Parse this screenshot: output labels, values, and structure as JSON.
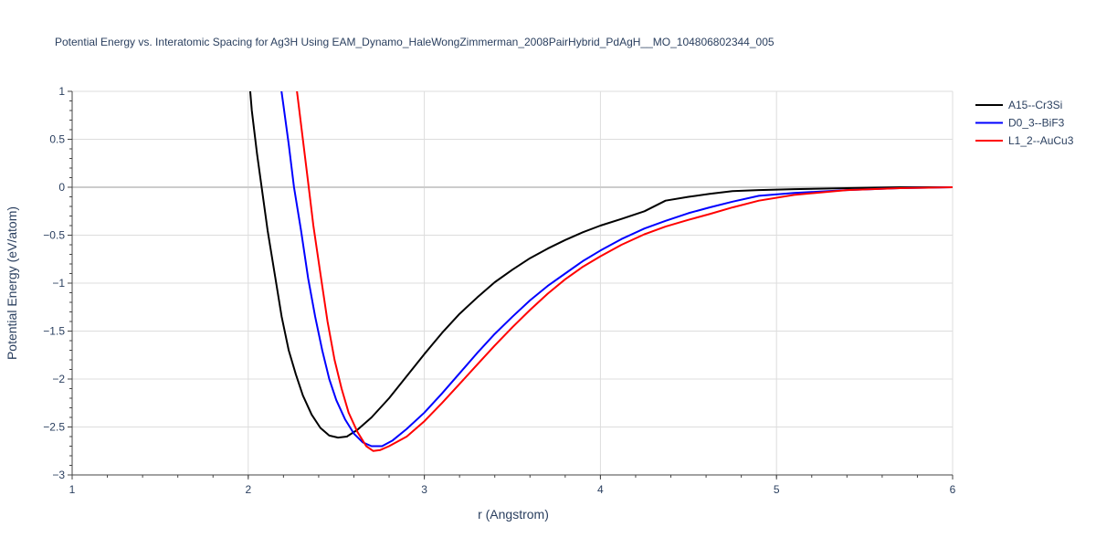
{
  "chart_data": {
    "type": "line",
    "title": "Potential Energy vs. Interatomic Spacing for Ag3H Using EAM_Dynamo_HaleWongZimmerman_2008PairHybrid_PdAgH__MO_104806802344_005",
    "xlabel": "r (Angstrom)",
    "ylabel": "Potential Energy (eV/atom)",
    "xlim": [
      1,
      6
    ],
    "ylim": [
      -3,
      1
    ],
    "x_ticks": [
      "1",
      "2",
      "3",
      "4",
      "5",
      "6"
    ],
    "y_ticks": [
      "1",
      "0.5",
      "0",
      "−0.5",
      "−1",
      "−1.5",
      "−2",
      "−2.5",
      "−3"
    ],
    "x_tick_values": [
      1,
      2,
      3,
      4,
      5,
      6
    ],
    "y_tick_values": [
      1,
      0.5,
      0,
      -0.5,
      -1,
      -1.5,
      -2,
      -2.5,
      -3
    ],
    "grid": true,
    "legend_position": "top-right",
    "series": [
      {
        "name": "A15--Cr3Si",
        "color": "#000000",
        "points": [
          [
            2.0,
            1.25
          ],
          [
            2.02,
            0.8
          ],
          [
            2.05,
            0.35
          ],
          [
            2.08,
            -0.05
          ],
          [
            2.11,
            -0.45
          ],
          [
            2.15,
            -0.9
          ],
          [
            2.19,
            -1.35
          ],
          [
            2.23,
            -1.7
          ],
          [
            2.27,
            -1.95
          ],
          [
            2.31,
            -2.17
          ],
          [
            2.36,
            -2.37
          ],
          [
            2.41,
            -2.51
          ],
          [
            2.46,
            -2.59
          ],
          [
            2.51,
            -2.61
          ],
          [
            2.56,
            -2.6
          ],
          [
            2.62,
            -2.53
          ],
          [
            2.7,
            -2.4
          ],
          [
            2.8,
            -2.2
          ],
          [
            2.9,
            -1.97
          ],
          [
            3.0,
            -1.74
          ],
          [
            3.1,
            -1.52
          ],
          [
            3.2,
            -1.32
          ],
          [
            3.3,
            -1.15
          ],
          [
            3.4,
            -0.99
          ],
          [
            3.5,
            -0.86
          ],
          [
            3.6,
            -0.74
          ],
          [
            3.7,
            -0.64
          ],
          [
            3.8,
            -0.55
          ],
          [
            3.9,
            -0.47
          ],
          [
            4.0,
            -0.4
          ],
          [
            4.12,
            -0.33
          ],
          [
            4.25,
            -0.25
          ],
          [
            4.37,
            -0.14
          ],
          [
            4.5,
            -0.1
          ],
          [
            4.62,
            -0.07
          ],
          [
            4.75,
            -0.04
          ],
          [
            4.9,
            -0.03
          ],
          [
            5.1,
            -0.02
          ],
          [
            5.4,
            -0.01
          ],
          [
            5.7,
            0.0
          ],
          [
            6.0,
            0.0
          ]
        ]
      },
      {
        "name": "D0_3--BiF3",
        "color": "#0000ff",
        "points": [
          [
            2.17,
            1.25
          ],
          [
            2.2,
            0.85
          ],
          [
            2.23,
            0.45
          ],
          [
            2.26,
            0.0
          ],
          [
            2.3,
            -0.45
          ],
          [
            2.34,
            -0.95
          ],
          [
            2.38,
            -1.35
          ],
          [
            2.42,
            -1.7
          ],
          [
            2.46,
            -2.0
          ],
          [
            2.5,
            -2.22
          ],
          [
            2.55,
            -2.42
          ],
          [
            2.6,
            -2.57
          ],
          [
            2.65,
            -2.66
          ],
          [
            2.7,
            -2.7
          ],
          [
            2.76,
            -2.7
          ],
          [
            2.82,
            -2.64
          ],
          [
            2.9,
            -2.52
          ],
          [
            3.0,
            -2.35
          ],
          [
            3.1,
            -2.15
          ],
          [
            3.2,
            -1.94
          ],
          [
            3.3,
            -1.73
          ],
          [
            3.4,
            -1.53
          ],
          [
            3.5,
            -1.35
          ],
          [
            3.6,
            -1.18
          ],
          [
            3.7,
            -1.03
          ],
          [
            3.8,
            -0.9
          ],
          [
            3.9,
            -0.77
          ],
          [
            4.0,
            -0.66
          ],
          [
            4.12,
            -0.54
          ],
          [
            4.25,
            -0.43
          ],
          [
            4.37,
            -0.35
          ],
          [
            4.5,
            -0.27
          ],
          [
            4.62,
            -0.21
          ],
          [
            4.75,
            -0.15
          ],
          [
            4.9,
            -0.09
          ],
          [
            5.1,
            -0.06
          ],
          [
            5.4,
            -0.03
          ],
          [
            5.7,
            -0.01
          ],
          [
            6.0,
            0.0
          ]
        ]
      },
      {
        "name": "L1_2--AuCu3",
        "color": "#ff0000",
        "points": [
          [
            2.26,
            1.25
          ],
          [
            2.28,
            0.95
          ],
          [
            2.31,
            0.5
          ],
          [
            2.34,
            0.05
          ],
          [
            2.37,
            -0.4
          ],
          [
            2.41,
            -0.9
          ],
          [
            2.45,
            -1.4
          ],
          [
            2.49,
            -1.8
          ],
          [
            2.53,
            -2.1
          ],
          [
            2.57,
            -2.35
          ],
          [
            2.62,
            -2.55
          ],
          [
            2.67,
            -2.7
          ],
          [
            2.71,
            -2.75
          ],
          [
            2.75,
            -2.74
          ],
          [
            2.8,
            -2.7
          ],
          [
            2.9,
            -2.6
          ],
          [
            3.0,
            -2.44
          ],
          [
            3.1,
            -2.25
          ],
          [
            3.2,
            -2.05
          ],
          [
            3.3,
            -1.85
          ],
          [
            3.4,
            -1.65
          ],
          [
            3.5,
            -1.46
          ],
          [
            3.6,
            -1.28
          ],
          [
            3.7,
            -1.11
          ],
          [
            3.8,
            -0.96
          ],
          [
            3.9,
            -0.83
          ],
          [
            4.0,
            -0.72
          ],
          [
            4.12,
            -0.6
          ],
          [
            4.25,
            -0.49
          ],
          [
            4.37,
            -0.41
          ],
          [
            4.5,
            -0.34
          ],
          [
            4.62,
            -0.28
          ],
          [
            4.75,
            -0.21
          ],
          [
            4.9,
            -0.14
          ],
          [
            5.1,
            -0.08
          ],
          [
            5.4,
            -0.03
          ],
          [
            5.7,
            -0.01
          ],
          [
            6.0,
            0.0
          ]
        ]
      }
    ]
  }
}
